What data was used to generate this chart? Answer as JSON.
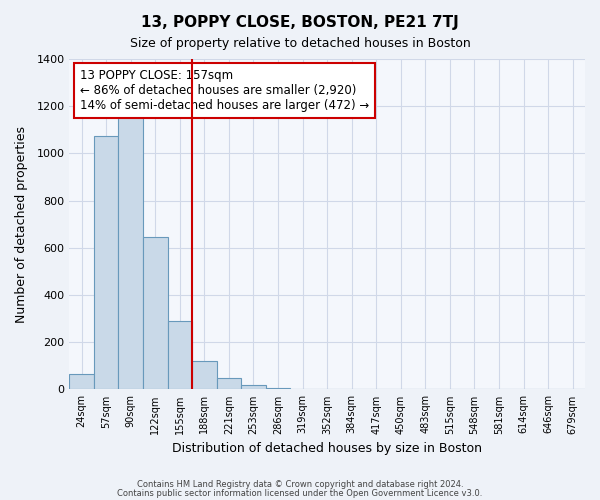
{
  "title": "13, POPPY CLOSE, BOSTON, PE21 7TJ",
  "subtitle": "Size of property relative to detached houses in Boston",
  "xlabel": "Distribution of detached houses by size in Boston",
  "ylabel": "Number of detached properties",
  "footer1": "Contains HM Land Registry data © Crown copyright and database right 2024.",
  "footer2": "Contains public sector information licensed under the Open Government Licence v3.0.",
  "annotation_line1": "13 POPPY CLOSE: 157sqm",
  "annotation_line2": "← 86% of detached houses are smaller (2,920)",
  "annotation_line3": "14% of semi-detached houses are larger (472) →",
  "bar_values": [
    65,
    1075,
    1155,
    645,
    290,
    120,
    48,
    18,
    8,
    0,
    0,
    0,
    0,
    0,
    0,
    0,
    0,
    0,
    0,
    0,
    0
  ],
  "bar_labels": [
    "24sqm",
    "57sqm",
    "90sqm",
    "122sqm",
    "155sqm",
    "188sqm",
    "221sqm",
    "253sqm",
    "286sqm",
    "319sqm",
    "352sqm",
    "384sqm",
    "417sqm",
    "450sqm",
    "483sqm",
    "515sqm",
    "548sqm",
    "581sqm",
    "614sqm",
    "646sqm",
    "679sqm"
  ],
  "bar_color": "#c9d9e8",
  "bar_edge_color": "#6899bb",
  "vline_color": "#cc0000",
  "annotation_box_edge_color": "#cc0000",
  "ylim": [
    0,
    1400
  ],
  "yticks": [
    0,
    200,
    400,
    600,
    800,
    1000,
    1200,
    1400
  ],
  "grid_color": "#d0d8e8",
  "bg_color": "#eef2f8",
  "plot_bg_color": "#f4f7fc"
}
